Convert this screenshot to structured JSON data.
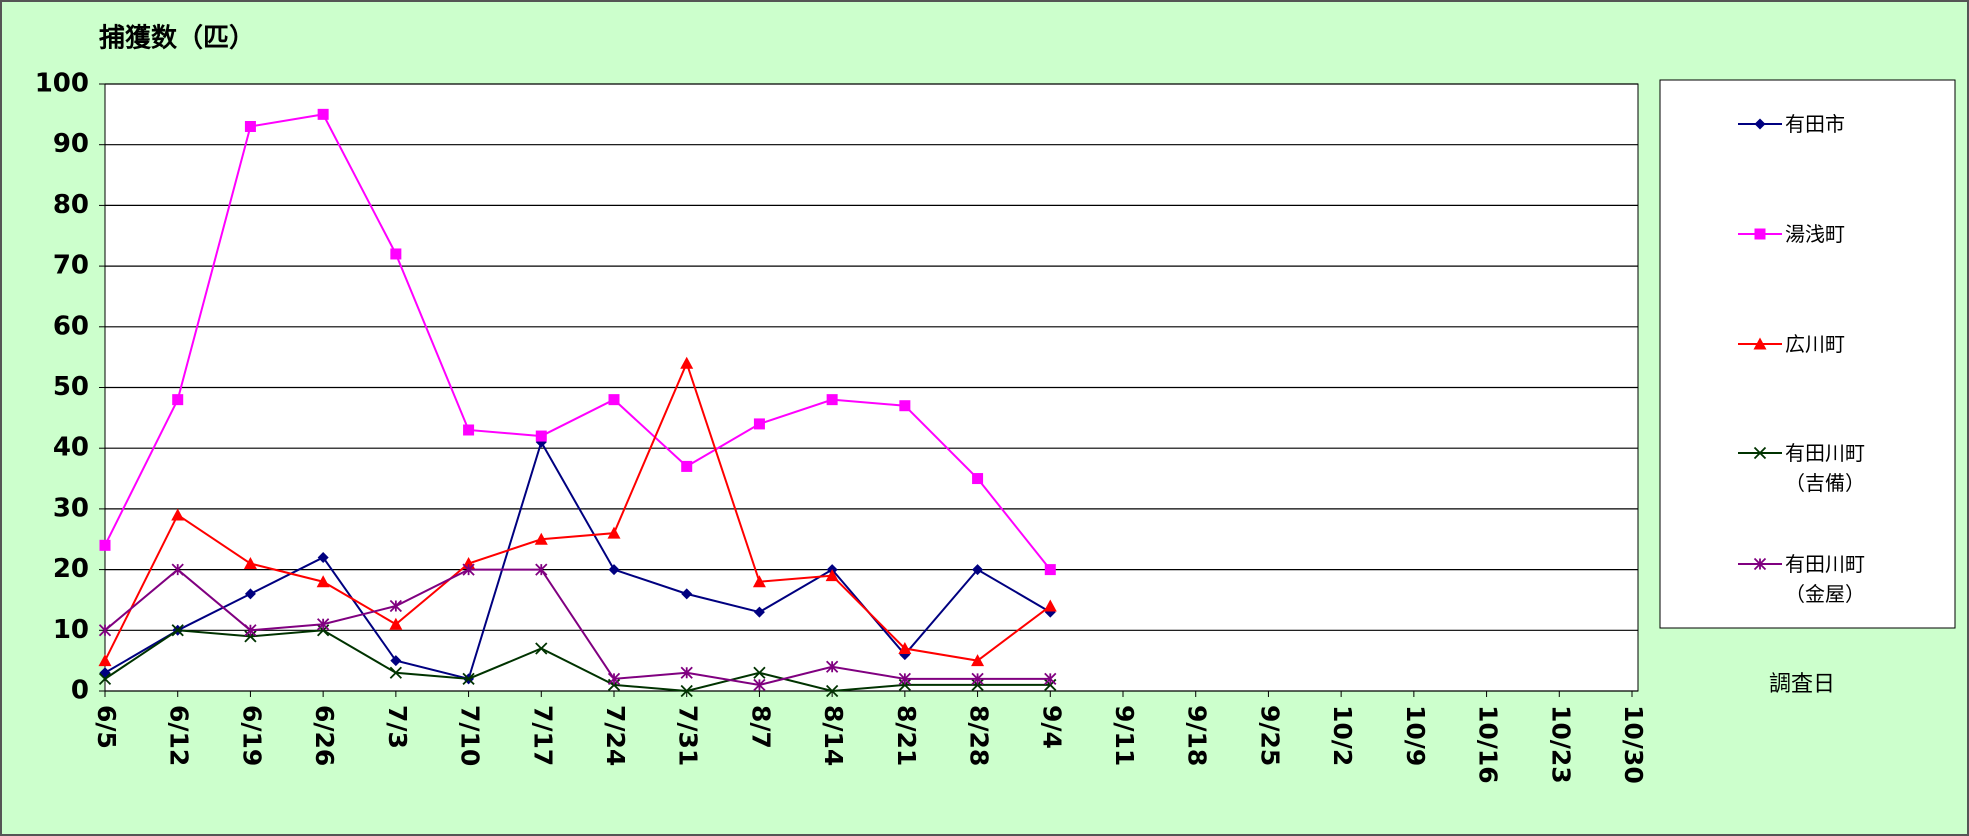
{
  "chart_data": {
    "type": "line",
    "y_label": "捕獲数（匹）",
    "x_label": "調査日",
    "categories": [
      "6/5",
      "6/12",
      "6/19",
      "6/26",
      "7/3",
      "7/10",
      "7/17",
      "7/24",
      "7/31",
      "8/7",
      "8/14",
      "8/21",
      "8/28",
      "9/4",
      "9/11",
      "9/18",
      "9/25",
      "10/2",
      "10/9",
      "10/16",
      "10/23",
      "10/30"
    ],
    "series": [
      {
        "name": "有田市",
        "color": "#000080",
        "marker": "diamond",
        "values": [
          3,
          10,
          16,
          22,
          5,
          2,
          41,
          20,
          16,
          13,
          20,
          6,
          20,
          13,
          null,
          null,
          null,
          null,
          null,
          null,
          null,
          null
        ]
      },
      {
        "name": "湯浅町",
        "color": "#ff00ff",
        "marker": "square",
        "values": [
          24,
          48,
          93,
          95,
          72,
          43,
          42,
          48,
          37,
          44,
          48,
          47,
          35,
          20,
          null,
          null,
          null,
          null,
          null,
          null,
          null,
          null
        ]
      },
      {
        "name": "広川町",
        "color": "#ff0000",
        "marker": "triangle",
        "values": [
          5,
          29,
          21,
          18,
          11,
          21,
          25,
          26,
          54,
          18,
          19,
          7,
          5,
          14,
          null,
          null,
          null,
          null,
          null,
          null,
          null,
          null
        ]
      },
      {
        "name": "有田川町\n（吉備）",
        "color": "#003300",
        "marker": "x",
        "values": [
          2,
          10,
          9,
          10,
          3,
          2,
          7,
          1,
          0,
          3,
          0,
          1,
          1,
          1,
          null,
          null,
          null,
          null,
          null,
          null,
          null,
          null
        ]
      },
      {
        "name": "有田川町\n（金屋）",
        "color": "#800080",
        "marker": "star",
        "values": [
          10,
          20,
          10,
          11,
          14,
          20,
          20,
          2,
          3,
          1,
          4,
          2,
          2,
          2,
          null,
          null,
          null,
          null,
          null,
          null,
          null,
          null
        ]
      }
    ],
    "ylim": [
      0,
      100
    ],
    "yticks": [
      0,
      10,
      20,
      30,
      40,
      50,
      60,
      70,
      80,
      90,
      100
    ],
    "grid": true
  }
}
